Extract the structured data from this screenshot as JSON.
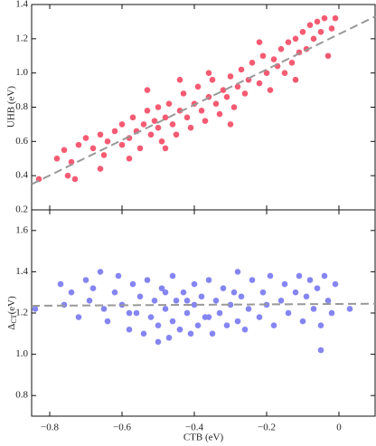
{
  "chart_data": [
    {
      "type": "scatter",
      "ylabel": "UHB (eV)",
      "color": "#f45b73",
      "xlim": [
        -0.85,
        0.1
      ],
      "ylim": [
        0.2,
        1.4
      ],
      "yticks": [
        0.2,
        0.4,
        0.6,
        0.8,
        {
          "value": 1,
          "label": "1.0"
        },
        1.2,
        1.4
      ],
      "fit": {
        "x": [
          -0.85,
          0.1
        ],
        "y": [
          0.35,
          1.33
        ],
        "color": "#999999"
      },
      "x": [
        -0.83,
        -0.75,
        -0.73,
        -0.78,
        -0.76,
        -0.72,
        -0.7,
        -0.74,
        -0.68,
        -0.66,
        -0.65,
        -0.64,
        -0.62,
        -0.6,
        -0.6,
        -0.58,
        -0.57,
        -0.56,
        -0.55,
        -0.54,
        -0.53,
        -0.52,
        -0.51,
        -0.5,
        -0.5,
        -0.49,
        -0.48,
        -0.47,
        -0.46,
        -0.45,
        -0.44,
        -0.43,
        -0.42,
        -0.41,
        -0.4,
        -0.39,
        -0.38,
        -0.37,
        -0.36,
        -0.35,
        -0.34,
        -0.33,
        -0.32,
        -0.31,
        -0.3,
        -0.29,
        -0.28,
        -0.27,
        -0.26,
        -0.25,
        -0.24,
        -0.22,
        -0.21,
        -0.2,
        -0.19,
        -0.18,
        -0.17,
        -0.16,
        -0.15,
        -0.14,
        -0.13,
        -0.12,
        -0.11,
        -0.1,
        -0.09,
        -0.08,
        -0.07,
        -0.06,
        -0.05,
        -0.04,
        -0.03,
        -0.02,
        -0.01,
        -0.66,
        -0.58,
        -0.48,
        -0.44,
        -0.36,
        -0.3,
        -0.22,
        -0.12,
        -0.53
      ],
      "values": [
        0.38,
        0.4,
        0.38,
        0.5,
        0.55,
        0.58,
        0.62,
        0.48,
        0.56,
        0.64,
        0.52,
        0.6,
        0.66,
        0.58,
        0.7,
        0.62,
        0.74,
        0.66,
        0.56,
        0.7,
        0.78,
        0.64,
        0.72,
        0.68,
        0.8,
        0.6,
        0.74,
        0.82,
        0.7,
        0.64,
        0.78,
        0.88,
        0.74,
        0.68,
        0.82,
        0.92,
        0.78,
        0.72,
        0.86,
        0.96,
        0.82,
        0.76,
        0.9,
        0.86,
        0.98,
        0.8,
        0.92,
        1.02,
        0.88,
        0.96,
        1.06,
        0.94,
        1.1,
        1.0,
        0.9,
        1.08,
        1.04,
        1.14,
        1.0,
        1.18,
        1.06,
        1.2,
        1.12,
        1.24,
        1.14,
        1.28,
        1.2,
        1.3,
        1.24,
        1.32,
        1.1,
        1.26,
        1.32,
        0.44,
        0.5,
        0.56,
        0.96,
        1.0,
        0.7,
        1.18,
        0.96,
        0.9
      ]
    },
    {
      "type": "scatter",
      "xlabel": "CTB (eV)",
      "ylabel": {
        "base": "Δ",
        "sub": "CT",
        "unit": "(eV)"
      },
      "color": "#8585f2",
      "xlim": [
        -0.85,
        0.1
      ],
      "ylim": [
        0.7,
        1.7
      ],
      "xticks": [
        {
          "value": -0.8,
          "label": "−0.8"
        },
        {
          "value": -0.6,
          "label": "−0.6"
        },
        {
          "value": -0.4,
          "label": "−0.4"
        },
        {
          "value": -0.2,
          "label": "−0.2"
        },
        0
      ],
      "yticks": [
        0.8,
        {
          "value": 1,
          "label": "1.0"
        },
        1.2,
        1.4,
        1.6
      ],
      "fit": {
        "x": [
          -0.85,
          0.1
        ],
        "y": [
          1.235,
          1.245
        ],
        "color": "#999999"
      },
      "x": [
        -0.84,
        -0.77,
        -0.76,
        -0.74,
        -0.72,
        -0.7,
        -0.69,
        -0.68,
        -0.66,
        -0.65,
        -0.64,
        -0.62,
        -0.61,
        -0.6,
        -0.58,
        -0.57,
        -0.56,
        -0.55,
        -0.54,
        -0.53,
        -0.52,
        -0.51,
        -0.5,
        -0.49,
        -0.48,
        -0.47,
        -0.46,
        -0.46,
        -0.45,
        -0.44,
        -0.43,
        -0.42,
        -0.41,
        -0.4,
        -0.4,
        -0.39,
        -0.38,
        -0.37,
        -0.36,
        -0.35,
        -0.34,
        -0.33,
        -0.32,
        -0.31,
        -0.3,
        -0.29,
        -0.28,
        -0.27,
        -0.26,
        -0.25,
        -0.24,
        -0.22,
        -0.21,
        -0.2,
        -0.19,
        -0.18,
        -0.16,
        -0.15,
        -0.14,
        -0.12,
        -0.11,
        -0.1,
        -0.09,
        -0.08,
        -0.07,
        -0.06,
        -0.05,
        -0.05,
        -0.04,
        -0.03,
        -0.02,
        -0.01,
        0.03,
        -0.58,
        -0.48,
        -0.44,
        -0.36,
        -0.28,
        -0.5,
        -0.42
      ],
      "values": [
        1.22,
        1.34,
        1.24,
        1.3,
        1.18,
        1.36,
        1.26,
        1.32,
        1.4,
        1.22,
        1.16,
        1.3,
        1.38,
        1.24,
        1.12,
        1.34,
        1.2,
        1.28,
        1.1,
        1.36,
        1.18,
        1.26,
        1.14,
        1.32,
        1.22,
        1.08,
        1.38,
        1.16,
        1.26,
        1.12,
        1.3,
        1.2,
        1.1,
        1.34,
        1.24,
        1.14,
        1.28,
        1.18,
        1.36,
        1.1,
        1.26,
        1.2,
        1.32,
        1.14,
        1.24,
        1.3,
        1.16,
        1.28,
        1.12,
        1.22,
        1.36,
        1.18,
        1.3,
        1.24,
        1.38,
        1.14,
        1.26,
        1.34,
        1.2,
        1.3,
        1.38,
        1.16,
        1.28,
        1.36,
        1.22,
        1.32,
        1.02,
        1.14,
        1.38,
        1.26,
        1.2,
        1.34,
        1.22,
        1.2,
        1.3,
        1.12,
        1.18,
        1.4,
        1.06,
        1.26
      ]
    }
  ]
}
